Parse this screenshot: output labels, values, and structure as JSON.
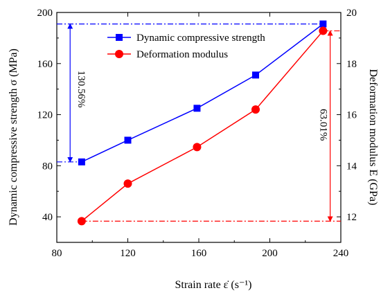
{
  "chart_data": {
    "type": "line",
    "xlabel": "Strain rate ε̇ (s⁻¹)",
    "ylabel": "Dynamic compressive strength σ (MPa)",
    "y2label": "Deformation modulus E (GPa)",
    "xlim": [
      80,
      240
    ],
    "ylim": [
      20,
      200
    ],
    "y2lim": [
      11,
      20
    ],
    "xticks": [
      80,
      120,
      160,
      200,
      240
    ],
    "yticks": [
      40,
      80,
      120,
      160,
      200
    ],
    "y2ticks": [
      12,
      14,
      16,
      18,
      20
    ],
    "grid": false,
    "legend_position": "top-center",
    "series": [
      {
        "name": "Dynamic compressive strength",
        "axis": "left",
        "color": "#0000ff",
        "marker": "square",
        "x": [
          94,
          120,
          159,
          192,
          230
        ],
        "y": [
          83,
          100,
          125,
          151,
          191
        ]
      },
      {
        "name": "Deformation modulus",
        "axis": "right",
        "color": "#ff0000",
        "marker": "circle",
        "x": [
          94,
          120,
          159,
          192,
          230
        ],
        "y": [
          11.83,
          13.3,
          14.73,
          16.2,
          19.28
        ]
      }
    ],
    "annotations": [
      {
        "text": "130.56%",
        "color": "#0000ff",
        "series": 0
      },
      {
        "text": "63.01%",
        "color": "#ff0000",
        "series": 1
      }
    ]
  }
}
